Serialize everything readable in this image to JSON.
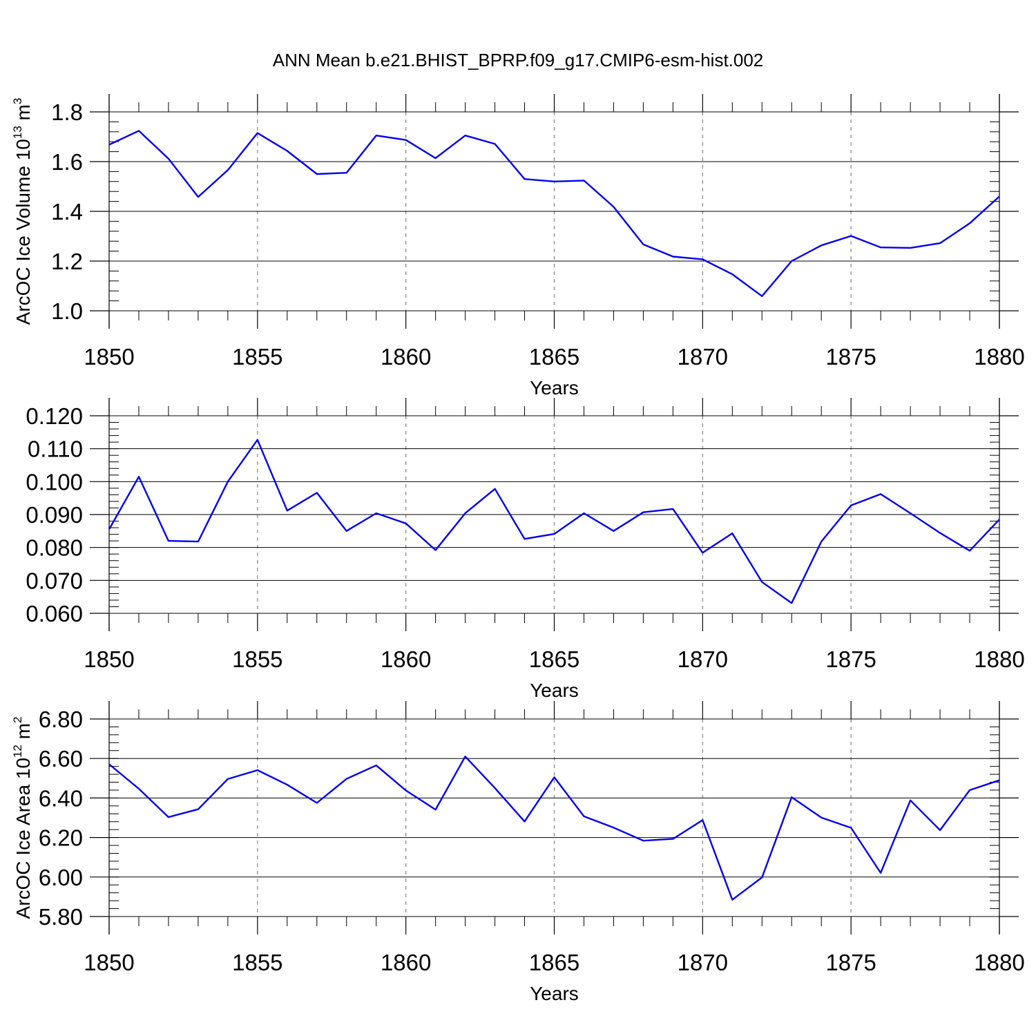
{
  "title": "ANN Mean b.e21.BHIST_BPRP.f09_g17.CMIP6-esm-hist.002",
  "colors": {
    "series": "#0000ee",
    "axis": "#000000",
    "grid": "#808080"
  },
  "chart_data": [
    {
      "type": "line",
      "title": "ANN Mean b.e21.BHIST_BPRP.f09_g17.CMIP6-esm-hist.002",
      "xlabel": "Years",
      "ylabel_main": "ArcOC Ice Volume 10",
      "ylabel_exp": "13",
      "ylabel_unit": " m",
      "ylabel_unit_exp": "3",
      "xlim": [
        1850,
        1880
      ],
      "ylim": [
        1.0,
        1.8
      ],
      "x_ticks": [
        1850,
        1855,
        1860,
        1865,
        1870,
        1875,
        1880
      ],
      "y_ticks": [
        "1.0",
        "1.2",
        "1.4",
        "1.6",
        "1.8"
      ],
      "y_tick_values": [
        1.0,
        1.2,
        1.4,
        1.6,
        1.8
      ],
      "y_minor_step": 0.04,
      "grid": "vertical-dashed",
      "x": [
        1850,
        1851,
        1852,
        1853,
        1854,
        1855,
        1856,
        1857,
        1858,
        1859,
        1860,
        1861,
        1862,
        1863,
        1864,
        1865,
        1866,
        1867,
        1868,
        1869,
        1870,
        1871,
        1872,
        1873,
        1874,
        1875,
        1876,
        1877,
        1878,
        1879,
        1880
      ],
      "values": [
        1.668,
        1.724,
        1.612,
        1.458,
        1.566,
        1.715,
        1.643,
        1.55,
        1.555,
        1.705,
        1.687,
        1.614,
        1.705,
        1.671,
        1.53,
        1.52,
        1.524,
        1.418,
        1.267,
        1.218,
        1.207,
        1.147,
        1.059,
        1.2,
        1.263,
        1.301,
        1.255,
        1.253,
        1.272,
        1.352,
        1.46
      ]
    },
    {
      "type": "line",
      "xlabel": "Years",
      "ylabel_main": "",
      "ylabel_exp": "",
      "ylabel_unit": "",
      "ylabel_unit_exp": "",
      "xlim": [
        1850,
        1880
      ],
      "ylim": [
        0.06,
        0.12
      ],
      "x_ticks": [
        1850,
        1855,
        1860,
        1865,
        1870,
        1875,
        1880
      ],
      "y_ticks": [
        "0.060",
        "0.070",
        "0.080",
        "0.090",
        "0.100",
        "0.110",
        "0.120"
      ],
      "y_tick_values": [
        0.06,
        0.07,
        0.08,
        0.09,
        0.1,
        0.11,
        0.12
      ],
      "y_minor_step": 0.002,
      "grid": "vertical-dashed",
      "x": [
        1850,
        1851,
        1852,
        1853,
        1854,
        1855,
        1856,
        1857,
        1858,
        1859,
        1860,
        1861,
        1862,
        1863,
        1864,
        1865,
        1866,
        1867,
        1868,
        1869,
        1870,
        1871,
        1872,
        1873,
        1874,
        1875,
        1876,
        1877,
        1878,
        1879,
        1880
      ],
      "values": [
        0.0855,
        0.1015,
        0.082,
        0.0818,
        0.1,
        0.1127,
        0.0912,
        0.0966,
        0.085,
        0.0904,
        0.0873,
        0.0792,
        0.0904,
        0.0978,
        0.0826,
        0.0841,
        0.0904,
        0.085,
        0.0907,
        0.0917,
        0.0784,
        0.0843,
        0.0695,
        0.0631,
        0.0818,
        0.0928,
        0.0962,
        0.0904,
        0.0844,
        0.079,
        0.0885
      ]
    },
    {
      "type": "line",
      "xlabel": "Years",
      "ylabel_main": "ArcOC Ice Area 10",
      "ylabel_exp": "12",
      "ylabel_unit": " m",
      "ylabel_unit_exp": "2",
      "xlim": [
        1850,
        1880
      ],
      "ylim": [
        5.8,
        6.8
      ],
      "x_ticks": [
        1850,
        1855,
        1860,
        1865,
        1870,
        1875,
        1880
      ],
      "y_ticks": [
        "5.80",
        "6.00",
        "6.20",
        "6.40",
        "6.60",
        "6.80"
      ],
      "y_tick_values": [
        5.8,
        6.0,
        6.2,
        6.4,
        6.6,
        6.8
      ],
      "y_minor_step": 0.04,
      "grid": "vertical-dashed",
      "x": [
        1850,
        1851,
        1852,
        1853,
        1854,
        1855,
        1856,
        1857,
        1858,
        1859,
        1860,
        1861,
        1862,
        1863,
        1864,
        1865,
        1866,
        1867,
        1868,
        1869,
        1870,
        1871,
        1872,
        1873,
        1874,
        1875,
        1876,
        1877,
        1878,
        1879,
        1880
      ],
      "values": [
        6.571,
        6.447,
        6.303,
        6.343,
        6.496,
        6.541,
        6.467,
        6.375,
        6.497,
        6.565,
        6.438,
        6.341,
        6.61,
        6.45,
        6.281,
        6.505,
        6.307,
        6.25,
        6.184,
        6.193,
        6.288,
        5.885,
        5.998,
        6.404,
        6.301,
        6.249,
        6.021,
        6.388,
        6.237,
        6.44,
        6.49
      ]
    }
  ]
}
